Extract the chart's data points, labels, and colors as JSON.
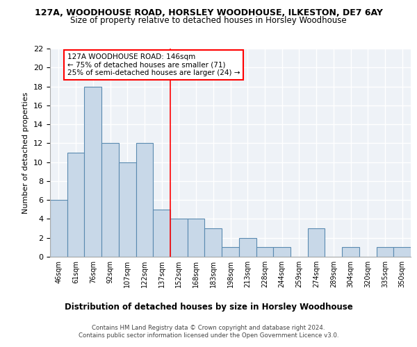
{
  "title_line1": "127A, WOODHOUSE ROAD, HORSLEY WOODHOUSE, ILKESTON, DE7 6AY",
  "title_line2": "Size of property relative to detached houses in Horsley Woodhouse",
  "xlabel": "Distribution of detached houses by size in Horsley Woodhouse",
  "ylabel": "Number of detached properties",
  "footer_line1": "Contains HM Land Registry data © Crown copyright and database right 2024.",
  "footer_line2": "Contains public sector information licensed under the Open Government Licence v3.0.",
  "bin_labels": [
    "46sqm",
    "61sqm",
    "76sqm",
    "92sqm",
    "107sqm",
    "122sqm",
    "137sqm",
    "152sqm",
    "168sqm",
    "183sqm",
    "198sqm",
    "213sqm",
    "228sqm",
    "244sqm",
    "259sqm",
    "274sqm",
    "289sqm",
    "304sqm",
    "320sqm",
    "335sqm",
    "350sqm"
  ],
  "bar_values": [
    6,
    11,
    18,
    12,
    10,
    12,
    5,
    4,
    4,
    3,
    1,
    2,
    1,
    1,
    0,
    3,
    0,
    1,
    0,
    1,
    1
  ],
  "bar_color": "#c8d8e8",
  "bar_edgecolor": "#5a8ab0",
  "ylim": [
    0,
    22
  ],
  "yticks": [
    0,
    2,
    4,
    6,
    8,
    10,
    12,
    14,
    16,
    18,
    20,
    22
  ],
  "annotation_text": "127A WOODHOUSE ROAD: 146sqm\n← 75% of detached houses are smaller (71)\n25% of semi-detached houses are larger (24) →",
  "vline_x": 6.5,
  "background_color": "#eef2f7"
}
